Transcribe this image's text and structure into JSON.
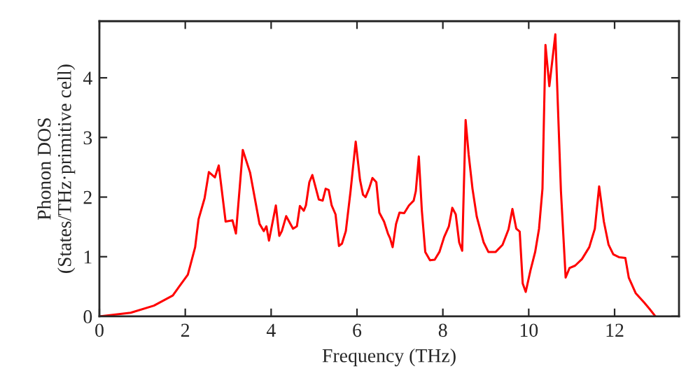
{
  "chart_data": {
    "type": "line",
    "xlabel": "Frequency (THz)",
    "ylabel": "Phonon DOS\n(States/THz·primitive cell)",
    "xlim": [
      0,
      13.5
    ],
    "ylim": [
      0,
      4.95
    ],
    "xticks": [
      0,
      2,
      4,
      6,
      8,
      10,
      12
    ],
    "yticks": [
      0,
      1,
      2,
      3,
      4
    ],
    "grid": false,
    "marker": "none",
    "line_style": "solid",
    "series": [
      {
        "color": "#ff0000",
        "x": [
          0,
          0.73,
          1.27,
          1.71,
          1.87,
          2.06,
          2.23,
          2.31,
          2.45,
          2.55,
          2.69,
          2.78,
          2.94,
          3.1,
          3.18,
          3.34,
          3.51,
          3.73,
          3.83,
          3.89,
          3.95,
          4.11,
          4.19,
          4.25,
          4.35,
          4.51,
          4.6,
          4.67,
          4.76,
          4.81,
          4.89,
          4.96,
          5.11,
          5.2,
          5.27,
          5.34,
          5.41,
          5.5,
          5.58,
          5.65,
          5.74,
          5.85,
          5.97,
          6.07,
          6.14,
          6.2,
          6.28,
          6.36,
          6.45,
          6.52,
          6.63,
          6.72,
          6.77,
          6.83,
          6.91,
          6.99,
          7.1,
          7.21,
          7.32,
          7.37,
          7.44,
          7.51,
          7.59,
          7.7,
          7.81,
          7.92,
          8.03,
          8.14,
          8.22,
          8.3,
          8.38,
          8.45,
          8.53,
          8.6,
          8.69,
          8.79,
          8.95,
          9.06,
          9.23,
          9.39,
          9.53,
          9.62,
          9.71,
          9.79,
          9.86,
          9.93,
          10.04,
          10.15,
          10.24,
          10.32,
          10.39,
          10.48,
          10.62,
          10.75,
          10.86,
          10.95,
          11.08,
          11.24,
          11.41,
          11.54,
          11.64,
          11.75,
          11.86,
          11.97,
          12.11,
          12.25,
          12.33,
          12.49,
          12.69,
          12.82,
          12.95
        ],
        "values": [
          0,
          0.06,
          0.18,
          0.35,
          0.51,
          0.7,
          1.16,
          1.63,
          1.98,
          2.42,
          2.33,
          2.53,
          1.59,
          1.61,
          1.39,
          2.79,
          2.41,
          1.55,
          1.43,
          1.51,
          1.27,
          1.86,
          1.35,
          1.43,
          1.68,
          1.47,
          1.51,
          1.85,
          1.77,
          1.86,
          2.25,
          2.37,
          1.96,
          1.94,
          2.14,
          2.12,
          1.86,
          1.71,
          1.18,
          1.22,
          1.43,
          2.1,
          2.93,
          2.29,
          2.04,
          2.0,
          2.14,
          2.32,
          2.25,
          1.74,
          1.59,
          1.39,
          1.31,
          1.16,
          1.55,
          1.74,
          1.73,
          1.86,
          1.94,
          2.1,
          2.68,
          1.78,
          1.08,
          0.94,
          0.95,
          1.08,
          1.33,
          1.51,
          1.82,
          1.71,
          1.24,
          1.1,
          3.29,
          2.72,
          2.14,
          1.67,
          1.24,
          1.08,
          1.08,
          1.2,
          1.46,
          1.8,
          1.47,
          1.42,
          0.55,
          0.41,
          0.77,
          1.08,
          1.47,
          2.14,
          4.55,
          3.86,
          4.73,
          2.1,
          0.65,
          0.81,
          0.85,
          0.96,
          1.16,
          1.47,
          2.18,
          1.59,
          1.2,
          1.04,
          0.99,
          0.98,
          0.65,
          0.39,
          0.23,
          0.12,
          0
        ]
      }
    ]
  }
}
